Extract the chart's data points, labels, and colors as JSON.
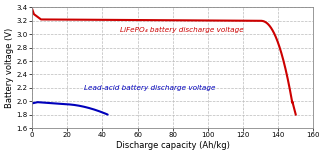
{
  "title": "",
  "xlabel": "Discharge capacity (Ah/kg)",
  "ylabel": "Battery voltage (V)",
  "xlim": [
    0,
    160
  ],
  "ylim": [
    1.6,
    3.4
  ],
  "xticks": [
    0,
    20,
    40,
    60,
    80,
    100,
    120,
    140,
    160
  ],
  "yticks": [
    1.6,
    1.8,
    2.0,
    2.2,
    2.4,
    2.6,
    2.8,
    3.0,
    3.2,
    3.4
  ],
  "lifepo4_label": "LiFePO₄ battery discharge voltage",
  "lead_acid_label": "Lead-acid battery discharge voltage",
  "lifepo4_color": "#cc0000",
  "lead_acid_color": "#0000bb",
  "background_color": "#ffffff",
  "grid_color": "#bbbbbb",
  "figsize": [
    3.25,
    1.55
  ],
  "dpi": 100
}
